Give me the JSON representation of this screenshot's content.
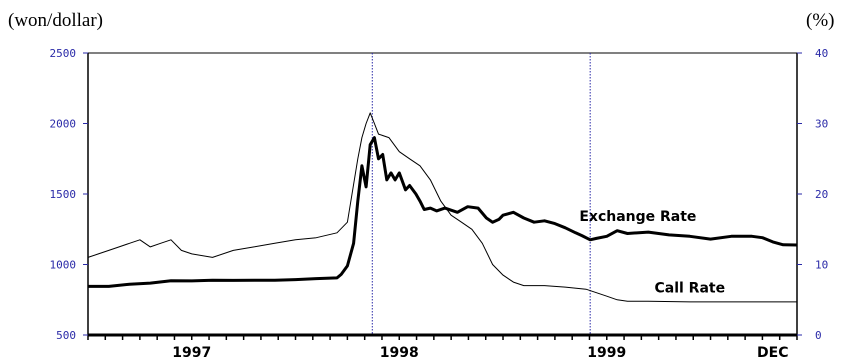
{
  "units": {
    "left": "(won/dollar)",
    "right": "(%)"
  },
  "chart_data": {
    "type": "line",
    "xlim": [
      1996.5,
      1999.9167
    ],
    "y_left": {
      "ylim": [
        500,
        2500
      ],
      "ticks": [
        500,
        1000,
        1500,
        2000,
        2500
      ]
    },
    "y_right": {
      "ylim": [
        0,
        40
      ],
      "ticks": [
        0,
        10,
        20,
        30,
        40
      ]
    },
    "x_tick_labels": [
      {
        "label": "1997",
        "x": 1997.0
      },
      {
        "label": "1998",
        "x": 1998.0
      },
      {
        "label": "1999",
        "x": 1999.0
      },
      {
        "label": "DEC",
        "x": 1999.8
      }
    ],
    "vertical_markers": [
      1997.87,
      1998.92
    ],
    "series": [
      {
        "name": "Exchange Rate",
        "axis": "left",
        "style": "thick",
        "points": [
          [
            1996.5,
            845
          ],
          [
            1996.6,
            845
          ],
          [
            1996.7,
            860
          ],
          [
            1996.8,
            868
          ],
          [
            1996.9,
            885
          ],
          [
            1997.0,
            884
          ],
          [
            1997.1,
            888
          ],
          [
            1997.2,
            887
          ],
          [
            1997.3,
            888
          ],
          [
            1997.4,
            888
          ],
          [
            1997.5,
            893
          ],
          [
            1997.6,
            900
          ],
          [
            1997.7,
            905
          ],
          [
            1997.72,
            930
          ],
          [
            1997.75,
            990
          ],
          [
            1997.78,
            1150
          ],
          [
            1997.8,
            1450
          ],
          [
            1997.82,
            1700
          ],
          [
            1997.84,
            1550
          ],
          [
            1997.86,
            1850
          ],
          [
            1997.88,
            1900
          ],
          [
            1997.9,
            1750
          ],
          [
            1997.92,
            1780
          ],
          [
            1997.94,
            1600
          ],
          [
            1997.96,
            1650
          ],
          [
            1997.98,
            1600
          ],
          [
            1998.0,
            1650
          ],
          [
            1998.03,
            1530
          ],
          [
            1998.05,
            1560
          ],
          [
            1998.08,
            1500
          ],
          [
            1998.1,
            1450
          ],
          [
            1998.12,
            1390
          ],
          [
            1998.15,
            1400
          ],
          [
            1998.18,
            1380
          ],
          [
            1998.22,
            1400
          ],
          [
            1998.28,
            1370
          ],
          [
            1998.33,
            1410
          ],
          [
            1998.38,
            1400
          ],
          [
            1998.42,
            1330
          ],
          [
            1998.45,
            1300
          ],
          [
            1998.48,
            1320
          ],
          [
            1998.5,
            1350
          ],
          [
            1998.55,
            1370
          ],
          [
            1998.6,
            1330
          ],
          [
            1998.65,
            1300
          ],
          [
            1998.7,
            1310
          ],
          [
            1998.75,
            1290
          ],
          [
            1998.8,
            1260
          ],
          [
            1998.85,
            1225
          ],
          [
            1998.88,
            1205
          ],
          [
            1998.92,
            1175
          ],
          [
            1998.95,
            1185
          ],
          [
            1999.0,
            1200
          ],
          [
            1999.05,
            1240
          ],
          [
            1999.1,
            1220
          ],
          [
            1999.2,
            1230
          ],
          [
            1999.3,
            1210
          ],
          [
            1999.4,
            1200
          ],
          [
            1999.5,
            1180
          ],
          [
            1999.6,
            1200
          ],
          [
            1999.7,
            1200
          ],
          [
            1999.75,
            1190
          ],
          [
            1999.8,
            1160
          ],
          [
            1999.85,
            1140
          ],
          [
            1999.9167,
            1138
          ]
        ]
      },
      {
        "name": "Call Rate",
        "axis": "right",
        "style": "thin",
        "points": [
          [
            1996.5,
            11.0
          ],
          [
            1996.55,
            11.5
          ],
          [
            1996.6,
            12.0
          ],
          [
            1996.65,
            12.5
          ],
          [
            1996.7,
            13.0
          ],
          [
            1996.75,
            13.5
          ],
          [
            1996.8,
            12.5
          ],
          [
            1996.85,
            13.0
          ],
          [
            1996.9,
            13.5
          ],
          [
            1996.95,
            12.0
          ],
          [
            1997.0,
            11.5
          ],
          [
            1997.1,
            11.0
          ],
          [
            1997.2,
            12.0
          ],
          [
            1997.3,
            12.5
          ],
          [
            1997.4,
            13.0
          ],
          [
            1997.5,
            13.5
          ],
          [
            1997.6,
            13.8
          ],
          [
            1997.7,
            14.5
          ],
          [
            1997.75,
            16.0
          ],
          [
            1997.8,
            25.0
          ],
          [
            1997.82,
            28.0
          ],
          [
            1997.84,
            30.0
          ],
          [
            1997.86,
            31.5
          ],
          [
            1997.88,
            30.0
          ],
          [
            1997.9,
            28.5
          ],
          [
            1997.95,
            28.0
          ],
          [
            1998.0,
            26.0
          ],
          [
            1998.05,
            25.0
          ],
          [
            1998.1,
            24.0
          ],
          [
            1998.15,
            22.0
          ],
          [
            1998.2,
            19.0
          ],
          [
            1998.25,
            17.0
          ],
          [
            1998.3,
            16.0
          ],
          [
            1998.35,
            15.0
          ],
          [
            1998.4,
            13.0
          ],
          [
            1998.45,
            10.0
          ],
          [
            1998.5,
            8.5
          ],
          [
            1998.55,
            7.5
          ],
          [
            1998.6,
            7.0
          ],
          [
            1998.7,
            7.0
          ],
          [
            1998.8,
            6.8
          ],
          [
            1998.9,
            6.5
          ],
          [
            1998.95,
            6.0
          ],
          [
            1999.0,
            5.5
          ],
          [
            1999.05,
            5.0
          ],
          [
            1999.1,
            4.8
          ],
          [
            1999.2,
            4.8
          ],
          [
            1999.4,
            4.7
          ],
          [
            1999.6,
            4.7
          ],
          [
            1999.8,
            4.7
          ],
          [
            1999.9167,
            4.7
          ]
        ]
      }
    ],
    "annotations": [
      {
        "text": "Exchange Rate",
        "x": 1999.15,
        "y_left": 1310
      },
      {
        "text": "Call Rate",
        "x": 1999.4,
        "y_left": 800
      }
    ]
  }
}
